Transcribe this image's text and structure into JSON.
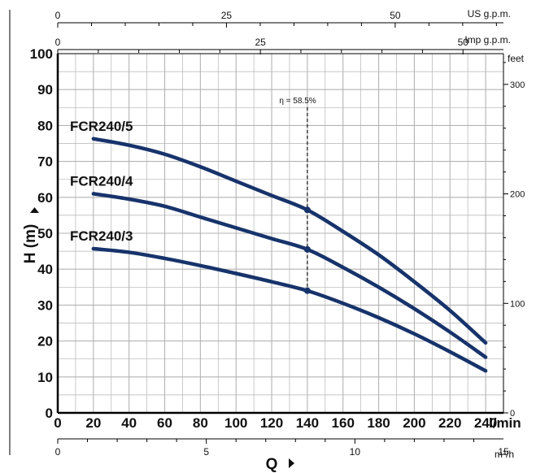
{
  "colors": {
    "curve": "#17336b",
    "grid": "#b3b3b3",
    "axis": "#000000",
    "text": "#111111"
  },
  "chart_data": {
    "type": "line",
    "xlabel": "Q",
    "ylabel": "H (m)",
    "x_unit": "l/min",
    "xlim": [
      0,
      250
    ],
    "ylim": [
      0,
      100
    ],
    "x_ticks": [
      0,
      20,
      40,
      60,
      80,
      100,
      120,
      140,
      160,
      180,
      200,
      220,
      240
    ],
    "y_ticks": [
      0,
      10,
      20,
      30,
      40,
      50,
      60,
      70,
      80,
      90,
      100
    ],
    "grid": true,
    "right_axis": {
      "label": "feet",
      "ticks": [
        0,
        100,
        200,
        300
      ]
    },
    "top_axes": [
      {
        "label": "US g.p.m.",
        "ticks": [
          0,
          25,
          50
        ]
      },
      {
        "label": "Imp g.p.m.",
        "ticks": [
          0,
          25,
          50
        ]
      }
    ],
    "bottom_axis2": {
      "label": "m³/h",
      "ticks": [
        0,
        5,
        10,
        15
      ]
    },
    "efficiency": {
      "label": "η = 58.5%",
      "x": 140
    },
    "series": [
      {
        "name": "FCR240/5",
        "x": [
          20,
          40,
          60,
          80,
          100,
          120,
          140,
          160,
          180,
          200,
          220,
          240
        ],
        "y": [
          76.3,
          74.5,
          72.0,
          68.5,
          64.5,
          60.5,
          56.5,
          50.5,
          44.0,
          36.5,
          28.5,
          19.5
        ]
      },
      {
        "name": "FCR240/4",
        "x": [
          20,
          40,
          60,
          80,
          100,
          120,
          140,
          160,
          180,
          200,
          220,
          240
        ],
        "y": [
          61.0,
          59.5,
          57.5,
          54.5,
          51.5,
          48.5,
          45.5,
          40.5,
          35.0,
          29.0,
          22.5,
          15.5
        ]
      },
      {
        "name": "FCR240/3",
        "x": [
          20,
          40,
          60,
          80,
          100,
          120,
          140,
          160,
          180,
          200,
          220,
          240
        ],
        "y": [
          45.7,
          44.7,
          43.0,
          41.0,
          38.8,
          36.5,
          34.0,
          30.5,
          26.5,
          22.0,
          17.0,
          11.7
        ]
      }
    ]
  }
}
